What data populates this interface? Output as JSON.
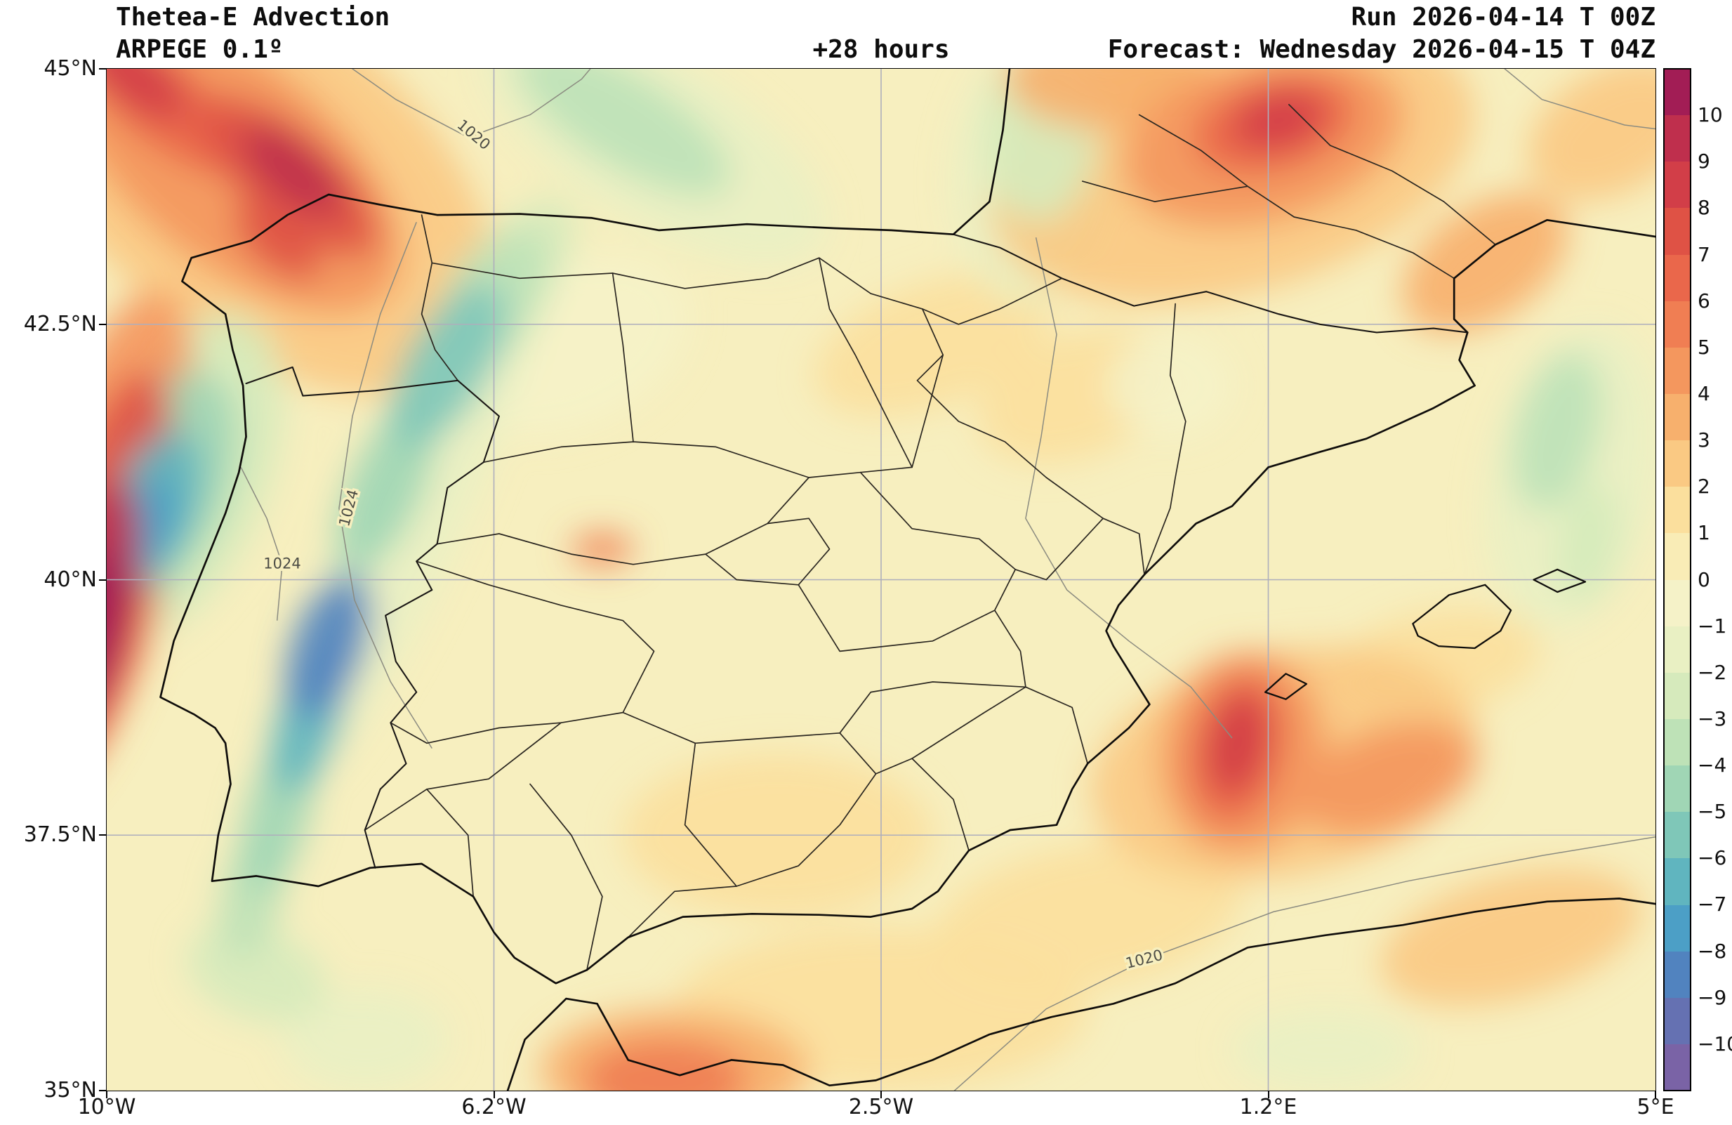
{
  "header": {
    "title": "Thetea-E Advection",
    "model": "ARPEGE 0.1º",
    "lead_time": "+28 hours",
    "run": "Run 2026-04-14 T 00Z",
    "forecast": "Forecast: Wednesday 2026-04-15 T 04Z"
  },
  "axes": {
    "x_ticks": [
      "10°W",
      "6.2°W",
      "2.5°W",
      "1.2°E",
      "5°E"
    ],
    "y_ticks": [
      "45°N",
      "42.5°N",
      "40°N",
      "37.5°N",
      "35°N"
    ]
  },
  "colorbar": {
    "tick_labels": [
      "10",
      "9",
      "8",
      "7",
      "6",
      "5",
      "4",
      "3",
      "2",
      "1",
      "0",
      "−1",
      "−2",
      "−3",
      "−4",
      "−5",
      "−6",
      "−7",
      "−8",
      "−9",
      "−10"
    ]
  },
  "chart_data": {
    "type": "heatmap",
    "subtype": "filled-contour-weather-map",
    "title": "Thetea-E Advection",
    "model": "ARPEGE 0.1º",
    "lead_time": "+28 hours",
    "run": "Run 2026-04-14 T 00Z",
    "forecast": "Forecast: Wednesday 2026-04-15 T 04Z",
    "lon_range": [
      -10,
      5
    ],
    "lat_range": [
      35,
      45
    ],
    "grid": true,
    "legend_position": "right-colorbar",
    "colorbar_levels": [
      10,
      9,
      8,
      7,
      6,
      5,
      4,
      3,
      2,
      1,
      0,
      -1,
      -2,
      -3,
      -4,
      -5,
      -6,
      -7,
      -8,
      -9,
      -10
    ],
    "colorbar_colors": [
      "#a21d55",
      "#bf2f4d",
      "#d23e48",
      "#df5245",
      "#ea674b",
      "#f07e53",
      "#f4975e",
      "#f7b06d",
      "#fac983",
      "#fbdf9d",
      "#f9ecb6",
      "#f5f2c8",
      "#e9f0c3",
      "#d6eabc",
      "#bee2b7",
      "#a0d6b5",
      "#7fc7b8",
      "#60b5bf",
      "#4c9fc6",
      "#5183bf",
      "#6571b2",
      "#7a63a6"
    ],
    "base_color": "#f7efbf",
    "isobar_labels": [
      {
        "text": "1020",
        "lon": -6.45,
        "lat": 44.35,
        "rot": 40
      },
      {
        "text": "1024",
        "lon": -7.65,
        "lat": 40.7,
        "rot": -75
      },
      {
        "text": "1024",
        "lon": -8.3,
        "lat": 40.15,
        "rot": 0
      },
      {
        "text": "1020",
        "lon": 0.05,
        "lat": 36.28,
        "rot": -14
      }
    ],
    "field_features_format": [
      "lon",
      "lat",
      "rx_deg",
      "ry_deg",
      "rotation_deg",
      "level"
    ],
    "field_features": [
      [
        -8.6,
        44.0,
        2.8,
        1.6,
        40,
        2
      ],
      [
        -8.8,
        44.1,
        2.0,
        1.0,
        40,
        4
      ],
      [
        -8.25,
        43.95,
        1.1,
        0.45,
        40,
        7
      ],
      [
        -8.2,
        44.0,
        0.6,
        0.28,
        40,
        9
      ],
      [
        -9.5,
        44.7,
        1.0,
        0.4,
        40,
        6
      ],
      [
        -9.8,
        45.0,
        0.7,
        0.3,
        40,
        8
      ],
      [
        -8.35,
        43.3,
        0.5,
        0.25,
        40,
        7
      ],
      [
        -10.1,
        40.3,
        0.75,
        2.6,
        14,
        4
      ],
      [
        -10.1,
        40.0,
        0.55,
        2.1,
        14,
        7
      ],
      [
        -10.15,
        39.7,
        0.4,
        1.3,
        12,
        9
      ],
      [
        -10.15,
        39.5,
        0.3,
        0.8,
        12,
        10
      ],
      [
        -9.3,
        41.0,
        0.85,
        1.7,
        22,
        -3
      ],
      [
        -9.45,
        40.9,
        0.6,
        1.2,
        22,
        -5
      ],
      [
        -9.55,
        40.7,
        0.4,
        0.8,
        22,
        -7
      ],
      [
        -9.6,
        40.5,
        0.28,
        0.5,
        22,
        -8
      ],
      [
        -7.1,
        40.6,
        0.55,
        2.9,
        24,
        -2
      ],
      [
        -6.25,
        42.75,
        0.45,
        0.75,
        30,
        -4
      ],
      [
        -6.7,
        42.1,
        0.4,
        0.9,
        30,
        -6
      ],
      [
        -7.3,
        40.9,
        0.35,
        0.9,
        24,
        -5
      ],
      [
        -7.85,
        39.35,
        0.35,
        0.75,
        20,
        -9
      ],
      [
        -8.05,
        38.6,
        0.3,
        0.7,
        18,
        -7
      ],
      [
        -8.35,
        37.7,
        0.3,
        0.8,
        15,
        -5
      ],
      [
        -8.6,
        36.9,
        0.3,
        0.6,
        12,
        -4
      ],
      [
        -5.9,
        43.2,
        0.35,
        0.6,
        35,
        -3
      ],
      [
        -4.7,
        44.3,
        1.9,
        0.8,
        32,
        -2
      ],
      [
        -5.0,
        44.5,
        1.2,
        0.45,
        32,
        -4
      ],
      [
        -0.95,
        44.4,
        0.55,
        0.9,
        5,
        -3
      ],
      [
        -1.0,
        44.0,
        0.8,
        1.3,
        5,
        -2
      ],
      [
        0.9,
        44.1,
        2.4,
        1.3,
        -15,
        2
      ],
      [
        1.2,
        44.3,
        1.4,
        0.8,
        -15,
        4
      ],
      [
        1.3,
        44.45,
        0.8,
        0.45,
        -15,
        6
      ],
      [
        1.35,
        44.5,
        0.45,
        0.28,
        -15,
        8
      ],
      [
        -0.3,
        44.9,
        1.0,
        0.5,
        0,
        3
      ],
      [
        3.35,
        43.1,
        0.9,
        0.55,
        -35,
        3
      ],
      [
        4.6,
        44.4,
        0.9,
        0.6,
        -30,
        2
      ],
      [
        4.05,
        41.45,
        0.4,
        0.8,
        15,
        -4
      ],
      [
        4.35,
        40.35,
        0.3,
        0.6,
        10,
        -3
      ],
      [
        4.2,
        41.0,
        0.8,
        1.5,
        12,
        -2
      ],
      [
        1.4,
        38.2,
        1.9,
        1.1,
        -12,
        2
      ],
      [
        1.0,
        38.3,
        0.8,
        1.0,
        10,
        4
      ],
      [
        0.95,
        38.35,
        0.45,
        0.75,
        12,
        6
      ],
      [
        0.95,
        38.4,
        0.28,
        0.5,
        12,
        8
      ],
      [
        2.4,
        38.05,
        0.9,
        0.5,
        -20,
        4
      ],
      [
        -4.6,
        35.1,
        0.8,
        0.4,
        0,
        5
      ],
      [
        -4.5,
        35.2,
        1.3,
        0.6,
        0,
        3
      ],
      [
        -8.55,
        36.15,
        0.7,
        0.45,
        20,
        -3
      ],
      [
        -7.5,
        35.5,
        0.8,
        0.5,
        0,
        -2
      ],
      [
        -2.5,
        35.8,
        2.0,
        0.8,
        0,
        1
      ],
      [
        1.8,
        35.4,
        0.9,
        0.4,
        0,
        -2
      ],
      [
        3.6,
        36.5,
        1.3,
        0.6,
        -15,
        2
      ],
      [
        -0.5,
        36.7,
        1.5,
        0.7,
        -10,
        1
      ],
      [
        -5.2,
        40.3,
        0.3,
        0.15,
        0,
        5
      ],
      [
        -2.0,
        42.3,
        1.2,
        0.6,
        -20,
        1
      ],
      [
        -5.5,
        42.3,
        1.2,
        0.8,
        -25,
        -1
      ],
      [
        -3.5,
        37.5,
        1.5,
        0.8,
        0,
        1
      ],
      [
        -0.6,
        41.8,
        1.0,
        0.6,
        -20,
        1
      ],
      [
        0.3,
        41.9,
        0.6,
        0.5,
        0,
        -1
      ],
      [
        2.9,
        39.2,
        1.0,
        0.5,
        -10,
        1
      ]
    ]
  }
}
